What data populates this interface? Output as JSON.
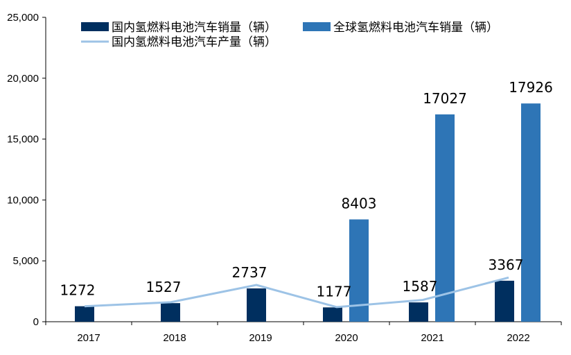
{
  "chart_data": {
    "type": "bar",
    "categories": [
      "2017",
      "2018",
      "2019",
      "2020",
      "2021",
      "2022"
    ],
    "series": [
      {
        "name": "国内氢燃料电池汽车销量（辆）",
        "kind": "bar",
        "color": "#002F5F",
        "values": [
          1272,
          1527,
          2737,
          1177,
          1587,
          3367
        ],
        "data_labels": [
          "1272",
          "1527",
          "2737",
          "1177",
          "1587",
          "3367"
        ]
      },
      {
        "name": "全球氢燃料电池汽车销量（辆）",
        "kind": "bar",
        "color": "#2E75B6",
        "values": [
          null,
          null,
          null,
          8403,
          17027,
          17926
        ],
        "data_labels": [
          "",
          "",
          "",
          "8403",
          "17027",
          "17926"
        ]
      },
      {
        "name": "国内氢燃料电池汽车产量（辆）",
        "kind": "line",
        "color": "#9DC3E6",
        "values": [
          1272,
          1600,
          3018,
          1199,
          1790,
          3626
        ]
      }
    ],
    "y_ticks": [
      "0",
      "5,000",
      "10,000",
      "15,000",
      "20,000",
      "25,000"
    ],
    "ylim": [
      0,
      25000
    ],
    "grid": false,
    "legend_position": "top"
  }
}
